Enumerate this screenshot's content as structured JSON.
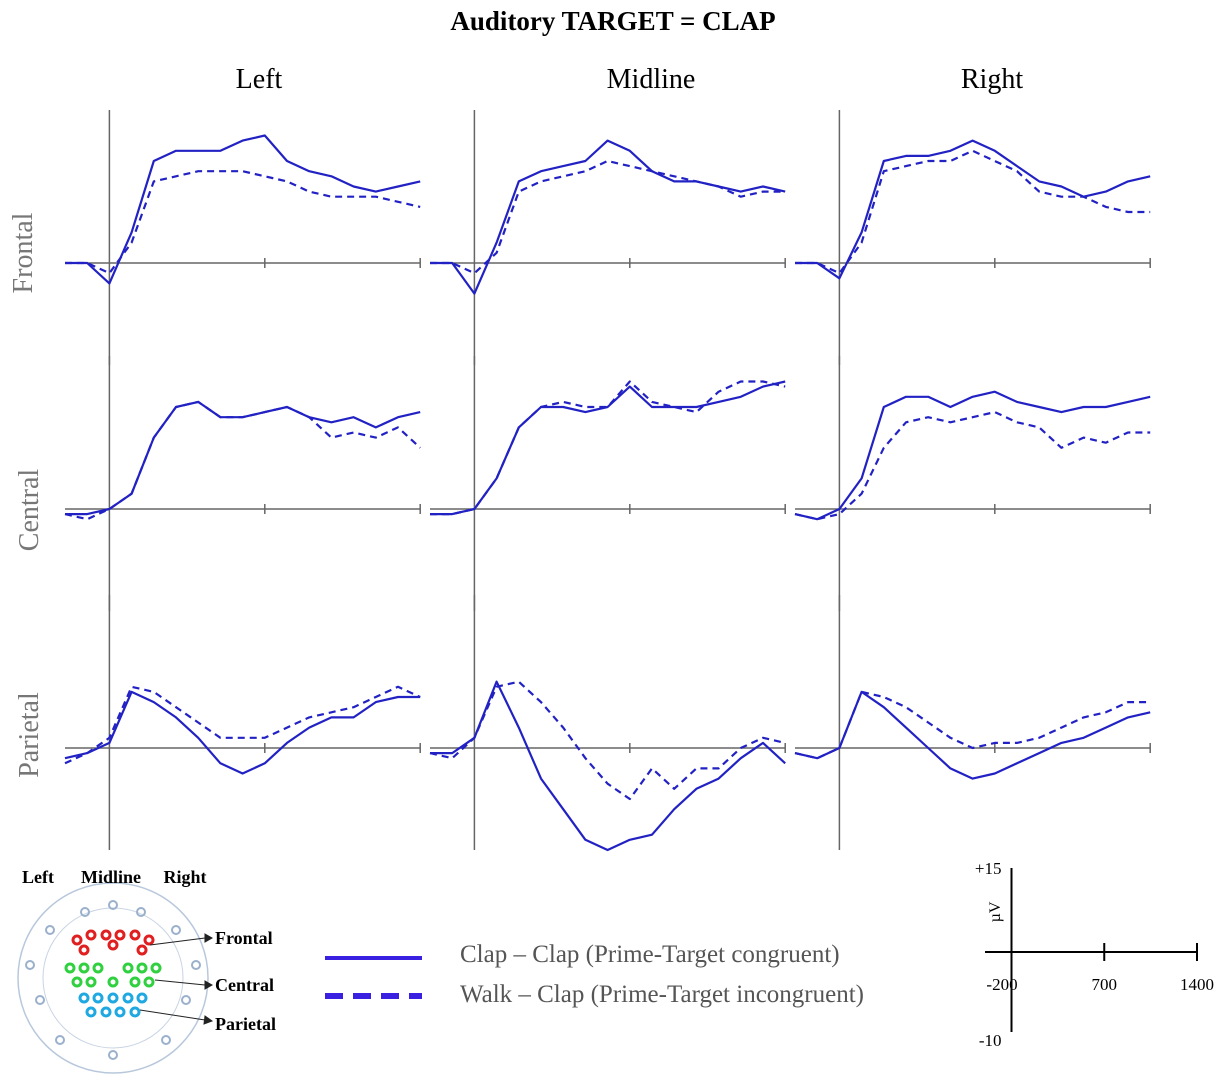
{
  "title": "Auditory TARGET = CLAP",
  "columns": [
    "Left",
    "Midline",
    "Right"
  ],
  "rows": [
    "Frontal",
    "Central",
    "Parietal"
  ],
  "chart_data": [
    {
      "type": "line",
      "x": [
        -200,
        -100,
        0,
        100,
        200,
        300,
        400,
        500,
        600,
        700,
        800,
        900,
        1000,
        1100,
        1200,
        1300,
        1400
      ],
      "xlim": [
        -200,
        1400
      ],
      "ylim": [
        -10,
        15
      ],
      "series": [
        {
          "name": "Clap – Clap (Prime-Target congruent)",
          "color": "#2222c4",
          "style": "solid",
          "values": [
            0,
            0,
            -2,
            3,
            10,
            11,
            11,
            11,
            12,
            12.5,
            10,
            9,
            8.5,
            7.5,
            7,
            7.5,
            8
          ]
        },
        {
          "name": "Walk – Clap (Prime-Target incongruent)",
          "color": "#2222c4",
          "style": "dashed",
          "values": [
            0,
            0,
            -1,
            2,
            8,
            8.5,
            9,
            9,
            9,
            8.5,
            8,
            7,
            6.5,
            6.5,
            6.5,
            6,
            5.5
          ]
        }
      ]
    },
    {
      "type": "line",
      "x": [
        -200,
        -100,
        0,
        100,
        200,
        300,
        400,
        500,
        600,
        700,
        800,
        900,
        1000,
        1100,
        1200,
        1300,
        1400
      ],
      "xlim": [
        -200,
        1400
      ],
      "ylim": [
        -10,
        15
      ],
      "series": [
        {
          "name": "Clap – Clap (Prime-Target congruent)",
          "color": "#2222c4",
          "style": "solid",
          "values": [
            0,
            0,
            -3,
            2,
            8,
            9,
            9.5,
            10,
            12,
            11,
            9,
            8,
            8,
            7.5,
            7,
            7.5,
            7
          ]
        },
        {
          "name": "Walk – Clap (Prime-Target incongruent)",
          "color": "#2222c4",
          "style": "dashed",
          "values": [
            0,
            0,
            -1,
            1,
            7,
            8,
            8.5,
            9,
            10,
            9.5,
            9,
            8.5,
            8,
            7.5,
            6.5,
            7,
            7
          ]
        }
      ]
    },
    {
      "type": "line",
      "x": [
        -200,
        -100,
        0,
        100,
        200,
        300,
        400,
        500,
        600,
        700,
        800,
        900,
        1000,
        1100,
        1200,
        1300,
        1400
      ],
      "xlim": [
        -200,
        1400
      ],
      "ylim": [
        -10,
        15
      ],
      "series": [
        {
          "name": "Clap – Clap (Prime-Target congruent)",
          "color": "#2222c4",
          "style": "solid",
          "values": [
            0,
            0,
            -1.5,
            3,
            10,
            10.5,
            10.5,
            11,
            12,
            11,
            9.5,
            8,
            7.5,
            6.5,
            7,
            8,
            8.5
          ]
        },
        {
          "name": "Walk – Clap (Prime-Target incongruent)",
          "color": "#2222c4",
          "style": "dashed",
          "values": [
            0,
            0,
            -1,
            2,
            9,
            9.5,
            10,
            10,
            11,
            10,
            9,
            7,
            6.5,
            6.5,
            5.5,
            5,
            5
          ]
        }
      ]
    },
    {
      "type": "line",
      "x": [
        -200,
        -100,
        0,
        100,
        200,
        300,
        400,
        500,
        600,
        700,
        800,
        900,
        1000,
        1100,
        1200,
        1300,
        1400
      ],
      "xlim": [
        -200,
        1400
      ],
      "ylim": [
        -10,
        15
      ],
      "series": [
        {
          "name": "Clap – Clap (Prime-Target congruent)",
          "color": "#2222c4",
          "style": "solid",
          "values": [
            -0.5,
            -0.5,
            0,
            1.5,
            7,
            10,
            10.5,
            9,
            9,
            9.5,
            10,
            9,
            8.5,
            9,
            8,
            9,
            9.5
          ]
        },
        {
          "name": "Walk – Clap (Prime-Target incongruent)",
          "color": "#2222c4",
          "style": "dashed",
          "values": [
            -0.5,
            -1,
            0,
            1.5,
            7,
            10,
            10.5,
            9,
            9,
            9.5,
            10,
            9,
            7,
            7.5,
            7,
            8,
            6
          ]
        }
      ]
    },
    {
      "type": "line",
      "x": [
        -200,
        -100,
        0,
        100,
        200,
        300,
        400,
        500,
        600,
        700,
        800,
        900,
        1000,
        1100,
        1200,
        1300,
        1400
      ],
      "xlim": [
        -200,
        1400
      ],
      "ylim": [
        -10,
        15
      ],
      "series": [
        {
          "name": "Clap – Clap (Prime-Target congruent)",
          "color": "#2222c4",
          "style": "solid",
          "values": [
            -0.5,
            -0.5,
            0,
            3,
            8,
            10,
            10,
            9.5,
            10,
            12,
            10,
            10,
            10,
            10.5,
            11,
            12,
            12.5
          ]
        },
        {
          "name": "Walk – Clap (Prime-Target incongruent)",
          "color": "#2222c4",
          "style": "dashed",
          "values": [
            -0.5,
            -0.5,
            0,
            3,
            8,
            10,
            10.5,
            10,
            10,
            12.5,
            10.5,
            10,
            9.5,
            11.5,
            12.5,
            12.5,
            12
          ]
        }
      ]
    },
    {
      "type": "line",
      "x": [
        -200,
        -100,
        0,
        100,
        200,
        300,
        400,
        500,
        600,
        700,
        800,
        900,
        1000,
        1100,
        1200,
        1300,
        1400
      ],
      "xlim": [
        -200,
        1400
      ],
      "ylim": [
        -10,
        15
      ],
      "series": [
        {
          "name": "Clap – Clap (Prime-Target congruent)",
          "color": "#2222c4",
          "style": "solid",
          "values": [
            -0.5,
            -1,
            0,
            3,
            10,
            11,
            11,
            10,
            11,
            11.5,
            10.5,
            10,
            9.5,
            10,
            10,
            10.5,
            11
          ]
        },
        {
          "name": "Walk – Clap (Prime-Target incongruent)",
          "color": "#2222c4",
          "style": "dashed",
          "values": [
            -0.5,
            -1,
            -0.5,
            1.5,
            6,
            8.5,
            9,
            8.5,
            9,
            9.5,
            8.5,
            8,
            6,
            7,
            6.5,
            7.5,
            7.5
          ]
        }
      ]
    },
    {
      "type": "line",
      "x": [
        -200,
        -100,
        0,
        100,
        200,
        300,
        400,
        500,
        600,
        700,
        800,
        900,
        1000,
        1100,
        1200,
        1300,
        1400
      ],
      "xlim": [
        -200,
        1400
      ],
      "ylim": [
        -10,
        15
      ],
      "series": [
        {
          "name": "Clap – Clap (Prime-Target congruent)",
          "color": "#2222c4",
          "style": "solid",
          "values": [
            -1,
            -0.5,
            0.5,
            5.5,
            4.5,
            3,
            1,
            -1.5,
            -2.5,
            -1.5,
            0.5,
            2,
            3,
            3,
            4.5,
            5,
            5
          ]
        },
        {
          "name": "Walk – Clap (Prime-Target incongruent)",
          "color": "#2222c4",
          "style": "dashed",
          "values": [
            -1.5,
            -0.5,
            1,
            6,
            5.5,
            4,
            2.5,
            1,
            1,
            1,
            2,
            3,
            3.5,
            4,
            5,
            6,
            5
          ]
        }
      ]
    },
    {
      "type": "line",
      "x": [
        -200,
        -100,
        0,
        100,
        200,
        300,
        400,
        500,
        600,
        700,
        800,
        900,
        1000,
        1100,
        1200,
        1300,
        1400
      ],
      "xlim": [
        -200,
        1400
      ],
      "ylim": [
        -10,
        15
      ],
      "series": [
        {
          "name": "Clap – Clap (Prime-Target congruent)",
          "color": "#2222c4",
          "style": "solid",
          "values": [
            -0.5,
            -0.5,
            1,
            6.5,
            2,
            -3,
            -6,
            -9,
            -10,
            -9,
            -8.5,
            -6,
            -4,
            -3,
            -1,
            0.5,
            -1.5
          ]
        },
        {
          "name": "Walk – Clap (Prime-Target incongruent)",
          "color": "#2222c4",
          "style": "dashed",
          "values": [
            -0.5,
            -1,
            1,
            6,
            6.5,
            4.5,
            2,
            -1,
            -3.5,
            -5,
            -2,
            -4,
            -2,
            -2,
            0,
            1,
            0.5
          ]
        }
      ]
    },
    {
      "type": "line",
      "x": [
        -200,
        -100,
        0,
        100,
        200,
        300,
        400,
        500,
        600,
        700,
        800,
        900,
        1000,
        1100,
        1200,
        1300,
        1400
      ],
      "xlim": [
        -200,
        1400
      ],
      "ylim": [
        -10,
        15
      ],
      "series": [
        {
          "name": "Clap – Clap (Prime-Target congruent)",
          "color": "#2222c4",
          "style": "solid",
          "values": [
            -0.5,
            -1,
            0,
            5.5,
            4,
            2,
            0,
            -2,
            -3,
            -2.5,
            -1.5,
            -0.5,
            0.5,
            1,
            2,
            3,
            3.5
          ]
        },
        {
          "name": "Walk – Clap (Prime-Target incongruent)",
          "color": "#2222c4",
          "style": "dashed",
          "values": [
            -0.5,
            -1,
            0,
            5.5,
            5,
            4,
            2.5,
            1,
            0,
            0.5,
            0.5,
            1,
            2,
            3,
            3.5,
            4.5,
            4.5
          ]
        }
      ]
    }
  ],
  "scale": {
    "xlim": [
      -200,
      1400
    ],
    "ylim": [
      -10,
      15
    ],
    "xticks": [
      -200,
      700,
      1400
    ],
    "yticks": [
      {
        "value": 15,
        "label": "+15"
      },
      -10
    ],
    "ylabel": "µV"
  },
  "head_map": {
    "columns": [
      "Left",
      "Midline",
      "Right"
    ],
    "regions": [
      "Frontal",
      "Central",
      "Parietal"
    ]
  }
}
